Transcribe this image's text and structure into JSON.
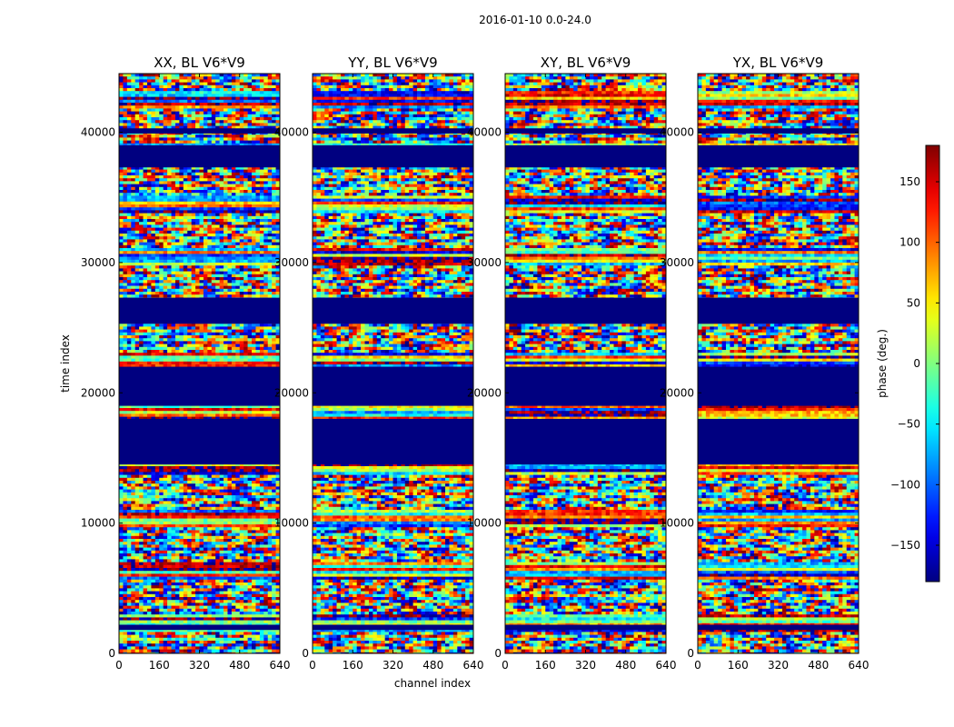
{
  "chart_data": {
    "type": "heatmap",
    "suptitle": "2016-01-10 0.0-24.0",
    "xlabel": "channel index",
    "ylabel": "time index",
    "xlim": [
      0,
      640
    ],
    "ylim": [
      0,
      44500
    ],
    "xticks": [
      0,
      160,
      320,
      480,
      640
    ],
    "yticks": [
      0,
      10000,
      20000,
      30000,
      40000
    ],
    "xtick_labels": [
      "0",
      "160",
      "320",
      "480",
      "640"
    ],
    "ytick_labels": [
      "0",
      "10000",
      "20000",
      "30000",
      "40000"
    ],
    "colormap": "jet",
    "colorbar": {
      "label": "phase (deg.)",
      "range": [
        -180,
        180
      ],
      "ticks": [
        150,
        100,
        50,
        0,
        -50,
        -100,
        -150
      ],
      "tick_labels": [
        "150",
        "100",
        "50",
        "0",
        "−50",
        "−100",
        "−150"
      ]
    },
    "panels": [
      {
        "title": "XX, BL V6*V9",
        "polarization": "XX",
        "baseline": "V6*V9"
      },
      {
        "title": "YY, BL V6*V9",
        "polarization": "YY",
        "baseline": "V6*V9"
      },
      {
        "title": "XY, BL V6*V9",
        "polarization": "XY",
        "baseline": "V6*V9"
      },
      {
        "title": "YX, BL V6*V9",
        "polarization": "YX",
        "baseline": "V6*V9"
      }
    ],
    "flagged_time_ranges": [
      [
        1800,
        2200
      ],
      [
        14500,
        18000
      ],
      [
        19000,
        22000
      ],
      [
        25300,
        27300
      ],
      [
        37300,
        39000
      ],
      [
        39900,
        40300
      ]
    ],
    "flagged_color": "#000080"
  }
}
